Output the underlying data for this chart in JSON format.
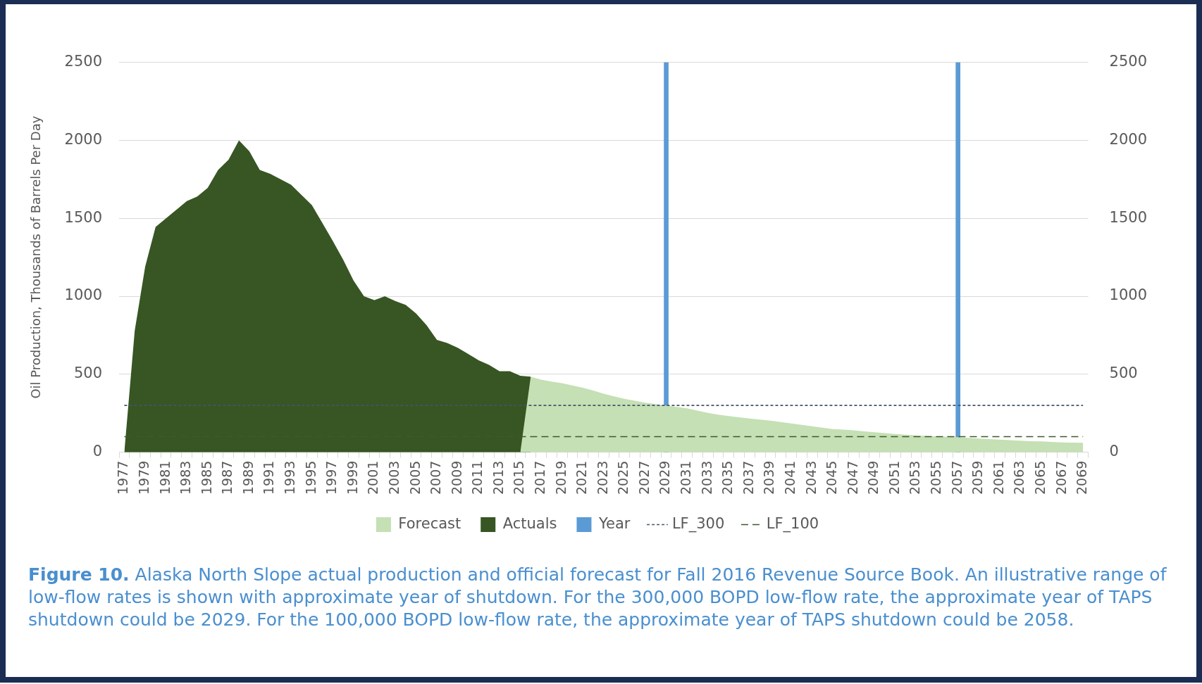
{
  "chart_data": {
    "type": "area",
    "ylabel": "Oil Production, Thousands of Barrels Per Day",
    "categories": [
      "1977",
      null,
      "1979",
      null,
      "1981",
      null,
      "1983",
      null,
      "1985",
      null,
      "1987",
      null,
      "1989",
      null,
      "1991",
      null,
      "1993",
      null,
      "1995",
      null,
      "1997",
      null,
      "1999",
      null,
      "2001",
      null,
      "2003",
      null,
      "2005",
      null,
      "2007",
      null,
      "2009",
      null,
      "2011",
      null,
      "2013",
      null,
      "2015",
      null,
      "2017",
      null,
      "2019",
      null,
      "2021",
      null,
      "2023",
      null,
      "2025",
      null,
      "2027",
      null,
      "2029",
      null,
      "2031",
      null,
      "2033",
      null,
      "2035",
      null,
      "2037",
      null,
      "2039",
      null,
      "2041",
      null,
      "2043",
      null,
      "2045",
      null,
      "2047",
      null,
      "2049",
      null,
      "2051",
      null,
      "2053",
      null,
      "2055",
      null,
      "2057",
      null,
      "2059",
      null,
      "2061",
      null,
      "2063",
      null,
      "2065",
      null,
      "2067",
      null,
      "2069"
    ],
    "series": [
      {
        "name": "Forecast",
        "color": "#c5e0b4",
        "values": [
          null,
          null,
          null,
          null,
          null,
          null,
          null,
          null,
          null,
          null,
          null,
          null,
          null,
          null,
          null,
          null,
          null,
          null,
          null,
          null,
          null,
          null,
          null,
          null,
          null,
          null,
          null,
          null,
          null,
          null,
          null,
          null,
          null,
          null,
          null,
          null,
          null,
          null,
          0,
          485,
          465,
          453,
          443,
          428,
          413,
          395,
          375,
          358,
          343,
          330,
          318,
          309,
          300,
          291,
          281,
          267,
          252,
          241,
          232,
          224,
          216,
          209,
          203,
          193,
          185,
          176,
          166,
          157,
          149,
          145,
          140,
          134,
          128,
          122,
          117,
          112,
          108,
          105,
          102,
          99,
          96,
          92,
          87,
          84,
          81,
          77,
          74,
          71,
          69,
          66,
          63,
          62,
          60
        ]
      },
      {
        "name": "Actuals",
        "color": "#375623",
        "values": [
          0,
          780,
          1190,
          1445,
          1500,
          1555,
          1610,
          1640,
          1695,
          1810,
          1875,
          2000,
          1930,
          1810,
          1785,
          1750,
          1715,
          1650,
          1585,
          1470,
          1355,
          1235,
          1100,
          1000,
          975,
          1000,
          970,
          945,
          890,
          815,
          720,
          700,
          670,
          630,
          590,
          560,
          520,
          520,
          490,
          485,
          null,
          null,
          null,
          null,
          null,
          null,
          null,
          null,
          null,
          null,
          null,
          null,
          null,
          null,
          null,
          null,
          null,
          null,
          null,
          null,
          null,
          null,
          null,
          null,
          null,
          null,
          null,
          null,
          null,
          null,
          null,
          null,
          null,
          null,
          null,
          null,
          null,
          null,
          null,
          null,
          null,
          null,
          null,
          null,
          null,
          null,
          null,
          null,
          null,
          null,
          null,
          null,
          null
        ]
      },
      {
        "name": "Year",
        "type": "bar",
        "axis": "y2",
        "color": "#5b9bd5",
        "values": [
          null,
          null,
          null,
          null,
          null,
          null,
          null,
          null,
          null,
          null,
          null,
          null,
          null,
          null,
          null,
          null,
          null,
          null,
          null,
          null,
          null,
          null,
          null,
          null,
          null,
          null,
          null,
          null,
          null,
          null,
          null,
          null,
          null,
          null,
          null,
          null,
          null,
          null,
          null,
          null,
          null,
          null,
          null,
          null,
          null,
          null,
          null,
          null,
          null,
          null,
          null,
          null,
          2500,
          null,
          null,
          null,
          null,
          null,
          null,
          null,
          null,
          null,
          null,
          null,
          null,
          null,
          null,
          null,
          null,
          null,
          null,
          null,
          null,
          null,
          null,
          null,
          null,
          null,
          null,
          null,
          2500,
          null,
          null,
          null,
          null,
          null,
          null,
          null,
          null,
          null,
          null,
          null,
          null
        ]
      },
      {
        "name": "LF_300",
        "type": "line",
        "color": "#44546a",
        "line_style": "dotted",
        "values": [
          300,
          300,
          300,
          300,
          300,
          300,
          300,
          300,
          300,
          300,
          300,
          300,
          300,
          300,
          300,
          300,
          300,
          300,
          300,
          300,
          300,
          300,
          300,
          300,
          300,
          300,
          300,
          300,
          300,
          300,
          300,
          300,
          300,
          300,
          300,
          300,
          300,
          300,
          300,
          300,
          300,
          300,
          300,
          300,
          300,
          300,
          300,
          300,
          300,
          300,
          300,
          300,
          300,
          300,
          300,
          300,
          300,
          300,
          300,
          300,
          300,
          300,
          300,
          300,
          300,
          300,
          300,
          300,
          300,
          300,
          300,
          300,
          300,
          300,
          300,
          300,
          300,
          300,
          300,
          300,
          300,
          300,
          300,
          300,
          300,
          300,
          300,
          300,
          300,
          300,
          300,
          300,
          300
        ]
      },
      {
        "name": "LF_100",
        "type": "line",
        "color": "#3f5a2a",
        "line_style": "dashed",
        "values": [
          100,
          100,
          100,
          100,
          100,
          100,
          100,
          100,
          100,
          100,
          100,
          100,
          100,
          100,
          100,
          100,
          100,
          100,
          100,
          100,
          100,
          100,
          100,
          100,
          100,
          100,
          100,
          100,
          100,
          100,
          100,
          100,
          100,
          100,
          100,
          100,
          100,
          100,
          100,
          100,
          100,
          100,
          100,
          100,
          100,
          100,
          100,
          100,
          100,
          100,
          100,
          100,
          100,
          100,
          100,
          100,
          100,
          100,
          100,
          100,
          100,
          100,
          100,
          100,
          100,
          100,
          100,
          100,
          100,
          100,
          100,
          100,
          100,
          100,
          100,
          100,
          100,
          100,
          100,
          100,
          100,
          100,
          100,
          100,
          100,
          100,
          100,
          100,
          100,
          100,
          100,
          100,
          100
        ]
      }
    ],
    "ylim": [
      0,
      2500
    ],
    "yticks": [
      0,
      500,
      1000,
      1500,
      2000,
      2500
    ],
    "y2lim": [
      0,
      2500
    ],
    "y2ticks": [
      0,
      500,
      1000,
      1500,
      2000,
      2500
    ],
    "grid": "y",
    "legend": "bottom",
    "marker": "none",
    "annotations": [
      "Figure 10. Alaska North Slope actual production and official forecast for Fall 2016 Revenue Source Book. An illustrative range of low-flow rates is shown with approximate year of shutdown. For the 300,000 BOPD low-flow rate, the approximate year of TAPS shutdown could be 2029. For the 100,000 BOPD low-flow rate, the approximate year of TAPS shutdown could be 2058."
    ]
  }
}
